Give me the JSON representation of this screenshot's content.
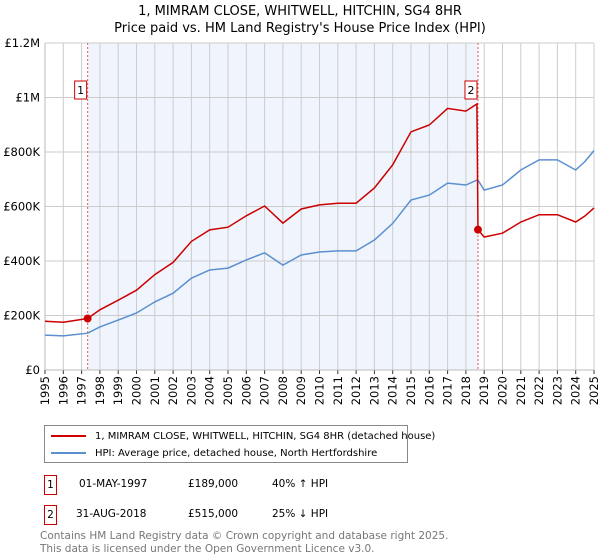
{
  "chart_data": {
    "type": "line",
    "title": "1, MIMRAM CLOSE, WHITWELL, HITCHIN, SG4 8HR",
    "subtitle": "Price paid vs. HM Land Registry's House Price Index (HPI)",
    "xlabel": "",
    "ylabel": "",
    "xlim": [
      1995,
      2025
    ],
    "ylim": [
      0,
      1200000
    ],
    "x_ticks": [
      "1995",
      "1996",
      "1997",
      "1998",
      "1999",
      "2000",
      "2001",
      "2002",
      "2003",
      "2004",
      "2005",
      "2006",
      "2007",
      "2008",
      "2009",
      "2010",
      "2011",
      "2012",
      "2013",
      "2014",
      "2015",
      "2016",
      "2017",
      "2018",
      "2019",
      "2020",
      "2021",
      "2022",
      "2023",
      "2024",
      "2025"
    ],
    "y_ticks": [
      {
        "v": 0,
        "label": "£0"
      },
      {
        "v": 200000,
        "label": "£200K"
      },
      {
        "v": 400000,
        "label": "£400K"
      },
      {
        "v": 600000,
        "label": "£600K"
      },
      {
        "v": 800000,
        "label": "£800K"
      },
      {
        "v": 1000000,
        "label": "£1M"
      },
      {
        "v": 1200000,
        "label": "£1.2M"
      }
    ],
    "grid": true,
    "series": [
      {
        "name": "1, MIMRAM CLOSE, WHITWELL, HITCHIN, SG4 8HR (detached house)",
        "color": "#cc0000",
        "x": [
          1995,
          1996,
          1997.33,
          1998,
          1999,
          2000,
          2001,
          2002,
          2003,
          2004,
          2005,
          2006,
          2007,
          2008,
          2009,
          2010,
          2011,
          2012,
          2013,
          2014,
          2015,
          2016,
          2017,
          2018,
          2018.6,
          2018.66,
          2019,
          2020,
          2021,
          2022,
          2023,
          2024,
          2024.5,
          2025
        ],
        "y": [
          179000,
          175000,
          189000,
          221000,
          256000,
          293000,
          350000,
          395000,
          472000,
          514000,
          524000,
          566000,
          602000,
          539000,
          591000,
          606000,
          612000,
          612000,
          668000,
          753000,
          874000,
          899000,
          960000,
          950000,
          976000,
          515000,
          488000,
          502000,
          543000,
          570000,
          570000,
          543000,
          565000,
          595000
        ]
      },
      {
        "name": "HPI: Average price, detached house, North Hertfordshire",
        "color": "#5b8fd0",
        "x": [
          1995,
          1996,
          1997.33,
          1998,
          1999,
          2000,
          2001,
          2002,
          2003,
          2004,
          2005,
          2006,
          2007,
          2008,
          2009,
          2010,
          2011,
          2012,
          2013,
          2014,
          2015,
          2016,
          2017,
          2018,
          2018.6,
          2018.66,
          2019,
          2020,
          2021,
          2022,
          2023,
          2024,
          2024.5,
          2025
        ],
        "y": [
          128000,
          125000,
          135000,
          158000,
          183000,
          209000,
          250000,
          282000,
          337000,
          367000,
          374000,
          404000,
          430000,
          385000,
          422000,
          433000,
          437000,
          437000,
          477000,
          538000,
          624000,
          642000,
          686000,
          679000,
          697000,
          697000,
          660000,
          679000,
          734000,
          771000,
          771000,
          734000,
          765000,
          805000
        ]
      }
    ],
    "sales": [
      {
        "id": "1",
        "x": 1997.33,
        "y": 189000,
        "date": "01-MAY-1997",
        "price": "£189,000",
        "hpi": "40% ↑ HPI"
      },
      {
        "id": "2",
        "x": 2018.66,
        "y": 515000,
        "date": "31-AUG-2018",
        "price": "£515,000",
        "hpi": "25% ↓ HPI"
      }
    ],
    "legend_placement": "below"
  },
  "footer": {
    "line1": "Contains HM Land Registry data © Crown copyright and database right 2025.",
    "line2": "This data is licensed under the Open Government Licence v3.0."
  }
}
